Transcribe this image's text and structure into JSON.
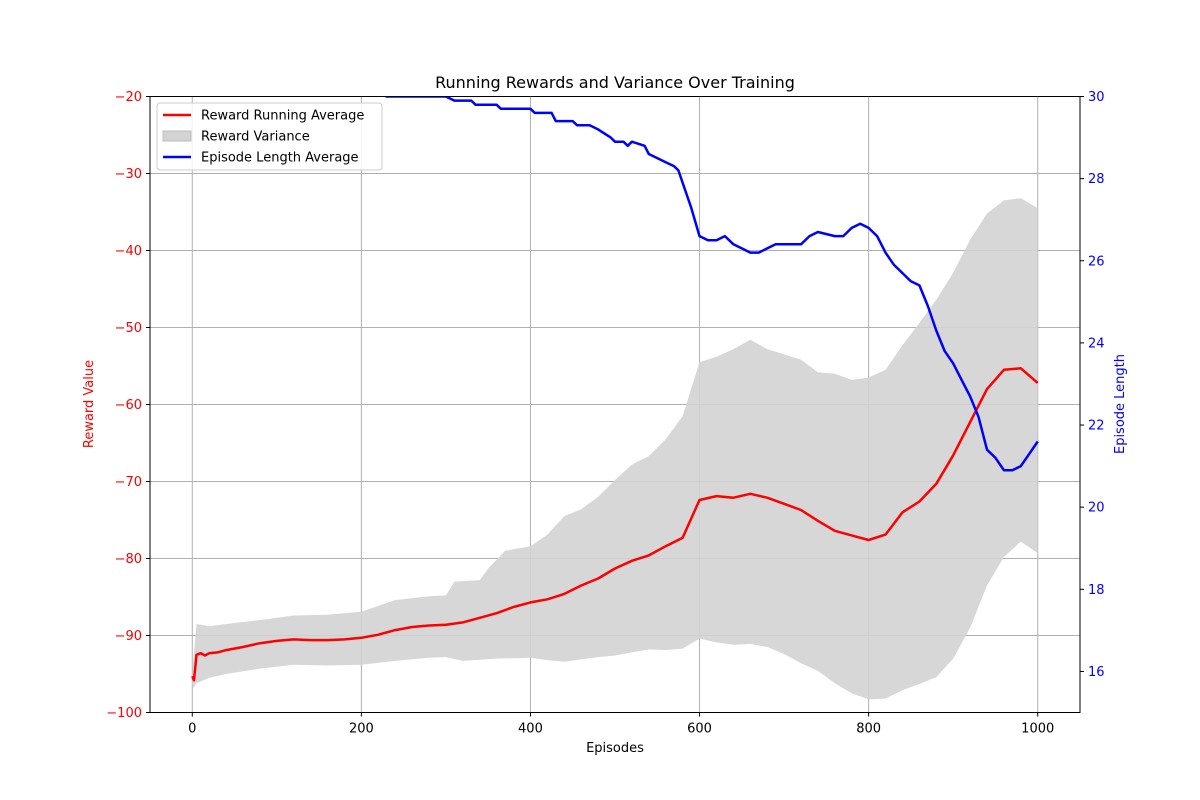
{
  "chart_data": {
    "type": "line",
    "title": "Running Rewards and Variance Over Training",
    "xlabel": "Episodes",
    "ylabel_left": "Reward Value",
    "ylabel_right": "Episode Length",
    "xlim": [
      -50,
      1050
    ],
    "ylim_left": [
      -100,
      -20
    ],
    "ylim_right": [
      15,
      30
    ],
    "x_ticks": [
      0,
      200,
      400,
      600,
      800,
      1000
    ],
    "y_ticks_left": [
      -100,
      -90,
      -80,
      -70,
      -60,
      -50,
      -40,
      -30,
      -20
    ],
    "y_ticks_right": [
      16,
      18,
      20,
      22,
      24,
      26,
      28,
      30
    ],
    "grid": true,
    "legend_position": "top-left",
    "colors": {
      "reward": "#ff0000",
      "variance": "#d3d3d3",
      "length": "#0000ff",
      "axis_left": "#ff0000",
      "axis_right": "#0000ff"
    },
    "series": [
      {
        "name": "Reward Running Average",
        "axis": "left",
        "style": "line",
        "points": [
          [
            0,
            -95.3
          ],
          [
            2,
            -95.8
          ],
          [
            5,
            -92.5
          ],
          [
            10,
            -92.3
          ],
          [
            15,
            -92.6
          ],
          [
            20,
            -92.3
          ],
          [
            30,
            -92.2
          ],
          [
            40,
            -91.9
          ],
          [
            60,
            -91.5
          ],
          [
            80,
            -91.0
          ],
          [
            100,
            -90.7
          ],
          [
            120,
            -90.5
          ],
          [
            140,
            -90.6
          ],
          [
            160,
            -90.6
          ],
          [
            180,
            -90.5
          ],
          [
            200,
            -90.3
          ],
          [
            220,
            -89.9
          ],
          [
            240,
            -89.3
          ],
          [
            260,
            -88.9
          ],
          [
            280,
            -88.7
          ],
          [
            300,
            -88.6
          ],
          [
            320,
            -88.3
          ],
          [
            340,
            -87.7
          ],
          [
            360,
            -87.1
          ],
          [
            380,
            -86.3
          ],
          [
            400,
            -85.7
          ],
          [
            420,
            -85.3
          ],
          [
            440,
            -84.6
          ],
          [
            460,
            -83.5
          ],
          [
            480,
            -82.6
          ],
          [
            500,
            -81.3
          ],
          [
            520,
            -80.3
          ],
          [
            540,
            -79.6
          ],
          [
            560,
            -78.4
          ],
          [
            580,
            -77.3
          ],
          [
            600,
            -72.4
          ],
          [
            620,
            -71.9
          ],
          [
            640,
            -72.1
          ],
          [
            660,
            -71.6
          ],
          [
            680,
            -72.1
          ],
          [
            700,
            -72.9
          ],
          [
            720,
            -73.7
          ],
          [
            740,
            -75.1
          ],
          [
            760,
            -76.4
          ],
          [
            780,
            -77.0
          ],
          [
            800,
            -77.6
          ],
          [
            820,
            -76.9
          ],
          [
            840,
            -74.0
          ],
          [
            860,
            -72.6
          ],
          [
            880,
            -70.3
          ],
          [
            900,
            -66.6
          ],
          [
            920,
            -62.3
          ],
          [
            940,
            -58.0
          ],
          [
            960,
            -55.5
          ],
          [
            980,
            -55.3
          ],
          [
            1000,
            -57.2
          ]
        ]
      },
      {
        "name": "Reward Variance",
        "axis": "left",
        "style": "band",
        "upper": [
          [
            0,
            -95.0
          ],
          [
            5,
            -88.5
          ],
          [
            20,
            -88.8
          ],
          [
            40,
            -88.5
          ],
          [
            80,
            -88.0
          ],
          [
            120,
            -87.4
          ],
          [
            160,
            -87.3
          ],
          [
            200,
            -86.9
          ],
          [
            240,
            -85.4
          ],
          [
            280,
            -84.9
          ],
          [
            300,
            -84.8
          ],
          [
            310,
            -83.0
          ],
          [
            340,
            -82.8
          ],
          [
            350,
            -81.3
          ],
          [
            370,
            -79.0
          ],
          [
            400,
            -78.4
          ],
          [
            420,
            -76.9
          ],
          [
            440,
            -74.5
          ],
          [
            460,
            -73.6
          ],
          [
            480,
            -72.0
          ],
          [
            500,
            -69.8
          ],
          [
            520,
            -67.8
          ],
          [
            540,
            -66.7
          ],
          [
            560,
            -64.5
          ],
          [
            580,
            -61.5
          ],
          [
            600,
            -54.5
          ],
          [
            620,
            -53.8
          ],
          [
            640,
            -52.8
          ],
          [
            660,
            -51.6
          ],
          [
            680,
            -52.8
          ],
          [
            700,
            -53.5
          ],
          [
            720,
            -54.2
          ],
          [
            740,
            -55.8
          ],
          [
            760,
            -56.0
          ],
          [
            780,
            -56.8
          ],
          [
            800,
            -56.5
          ],
          [
            820,
            -55.5
          ],
          [
            840,
            -52.3
          ],
          [
            860,
            -49.4
          ],
          [
            880,
            -46.4
          ],
          [
            900,
            -42.9
          ],
          [
            920,
            -38.6
          ],
          [
            940,
            -35.2
          ],
          [
            960,
            -33.5
          ],
          [
            980,
            -33.2
          ],
          [
            1000,
            -34.5
          ]
        ],
        "lower": [
          [
            0,
            -97.0
          ],
          [
            5,
            -96.2
          ],
          [
            20,
            -95.5
          ],
          [
            40,
            -95.0
          ],
          [
            80,
            -94.3
          ],
          [
            120,
            -93.8
          ],
          [
            160,
            -93.9
          ],
          [
            200,
            -93.8
          ],
          [
            240,
            -93.3
          ],
          [
            280,
            -92.9
          ],
          [
            300,
            -92.8
          ],
          [
            320,
            -93.3
          ],
          [
            360,
            -93.0
          ],
          [
            400,
            -92.9
          ],
          [
            420,
            -93.2
          ],
          [
            440,
            -93.4
          ],
          [
            460,
            -93.1
          ],
          [
            480,
            -92.8
          ],
          [
            500,
            -92.6
          ],
          [
            520,
            -92.2
          ],
          [
            540,
            -91.8
          ],
          [
            560,
            -91.9
          ],
          [
            580,
            -91.7
          ],
          [
            600,
            -90.4
          ],
          [
            620,
            -90.9
          ],
          [
            640,
            -91.2
          ],
          [
            660,
            -91.1
          ],
          [
            680,
            -91.5
          ],
          [
            700,
            -92.4
          ],
          [
            720,
            -93.6
          ],
          [
            740,
            -94.6
          ],
          [
            760,
            -96.2
          ],
          [
            780,
            -97.5
          ],
          [
            800,
            -98.3
          ],
          [
            820,
            -98.2
          ],
          [
            840,
            -97.1
          ],
          [
            860,
            -96.3
          ],
          [
            880,
            -95.4
          ],
          [
            900,
            -93.0
          ],
          [
            920,
            -89.0
          ],
          [
            940,
            -83.5
          ],
          [
            960,
            -79.8
          ],
          [
            980,
            -77.8
          ],
          [
            1000,
            -79.3
          ]
        ]
      },
      {
        "name": "Episode Length Average",
        "axis": "right",
        "style": "line",
        "points": [
          [
            0,
            30.3
          ],
          [
            200,
            30.3
          ],
          [
            230,
            30.0
          ],
          [
            300,
            30.0
          ],
          [
            310,
            29.9
          ],
          [
            330,
            29.9
          ],
          [
            335,
            29.8
          ],
          [
            360,
            29.8
          ],
          [
            365,
            29.7
          ],
          [
            400,
            29.7
          ],
          [
            405,
            29.6
          ],
          [
            425,
            29.6
          ],
          [
            430,
            29.4
          ],
          [
            450,
            29.4
          ],
          [
            455,
            29.3
          ],
          [
            470,
            29.3
          ],
          [
            480,
            29.2
          ],
          [
            495,
            29.0
          ],
          [
            500,
            28.9
          ],
          [
            510,
            28.9
          ],
          [
            515,
            28.8
          ],
          [
            520,
            28.9
          ],
          [
            535,
            28.8
          ],
          [
            540,
            28.6
          ],
          [
            550,
            28.5
          ],
          [
            560,
            28.4
          ],
          [
            570,
            28.3
          ],
          [
            575,
            28.2
          ],
          [
            580,
            27.9
          ],
          [
            590,
            27.3
          ],
          [
            600,
            26.6
          ],
          [
            610,
            26.5
          ],
          [
            620,
            26.5
          ],
          [
            630,
            26.6
          ],
          [
            640,
            26.4
          ],
          [
            650,
            26.3
          ],
          [
            660,
            26.2
          ],
          [
            670,
            26.2
          ],
          [
            680,
            26.3
          ],
          [
            690,
            26.4
          ],
          [
            700,
            26.4
          ],
          [
            720,
            26.4
          ],
          [
            730,
            26.6
          ],
          [
            740,
            26.7
          ],
          [
            760,
            26.6
          ],
          [
            770,
            26.6
          ],
          [
            780,
            26.8
          ],
          [
            790,
            26.9
          ],
          [
            800,
            26.8
          ],
          [
            810,
            26.6
          ],
          [
            820,
            26.2
          ],
          [
            830,
            25.9
          ],
          [
            840,
            25.7
          ],
          [
            850,
            25.5
          ],
          [
            860,
            25.4
          ],
          [
            870,
            24.9
          ],
          [
            880,
            24.3
          ],
          [
            890,
            23.8
          ],
          [
            900,
            23.5
          ],
          [
            910,
            23.1
          ],
          [
            920,
            22.7
          ],
          [
            930,
            22.2
          ],
          [
            940,
            21.4
          ],
          [
            950,
            21.2
          ],
          [
            960,
            20.9
          ],
          [
            970,
            20.9
          ],
          [
            980,
            21.0
          ],
          [
            990,
            21.3
          ],
          [
            1000,
            21.6
          ]
        ]
      }
    ]
  }
}
